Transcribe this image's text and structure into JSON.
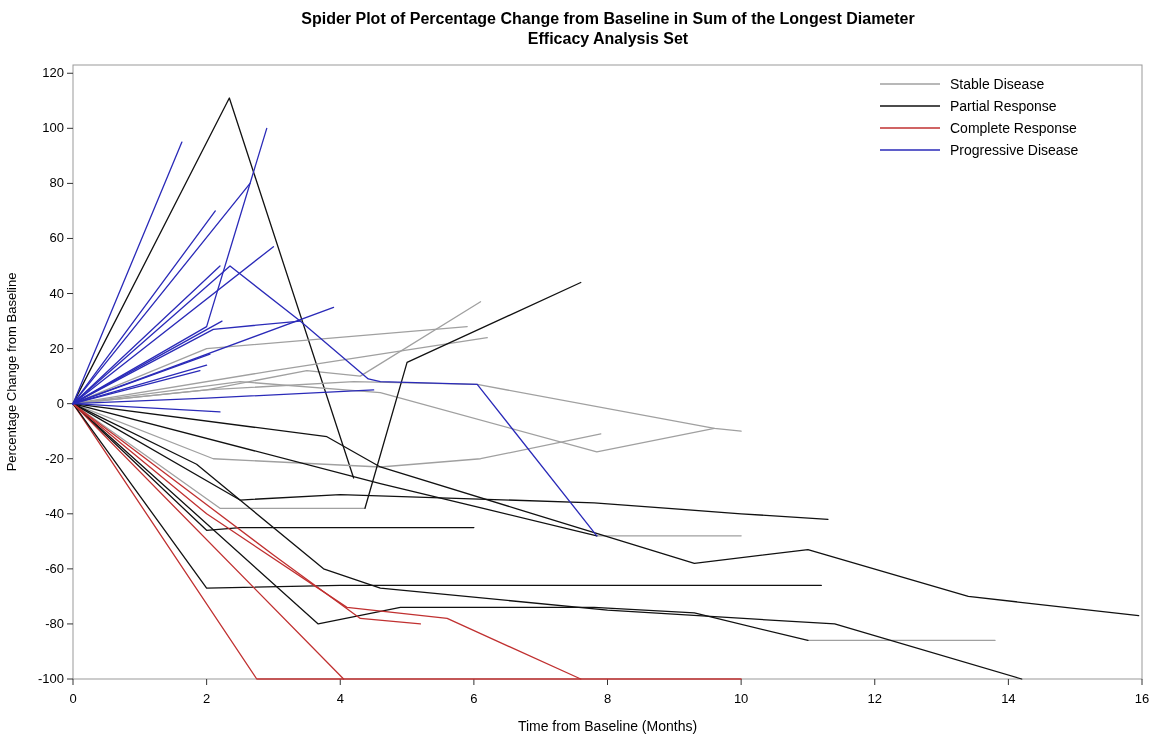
{
  "chart_data": {
    "type": "line",
    "title": "Spider Plot of Percentage Change from Baseline in Sum of the Longest Diameter",
    "subtitle": "Efficacy Analysis Set",
    "xlabel": "Time from Baseline (Months)",
    "ylabel": "Percentage Change from Baseline",
    "xlim": [
      0,
      16
    ],
    "ylim": [
      -100,
      123
    ],
    "xticks": [
      0,
      2,
      4,
      6,
      8,
      10,
      12,
      14,
      16
    ],
    "yticks": [
      -100,
      -80,
      -60,
      -40,
      -20,
      0,
      20,
      40,
      60,
      80,
      100,
      120
    ],
    "legend": "top right",
    "grid": false,
    "series": [
      {
        "name": "Stable Disease",
        "color": "#a0a0a0",
        "x": [
          0,
          2,
          3.5,
          4.3,
          6.1
        ],
        "values": [
          0,
          5,
          12,
          10,
          37
        ]
      },
      {
        "name": "Partial Response",
        "color": "#111111",
        "x": [
          0,
          2.34,
          4.2
        ],
        "values": [
          0,
          111,
          -27
        ]
      },
      {
        "name": "Complete Response",
        "color": "#c03030",
        "x": [
          0,
          2.75,
          10
        ],
        "values": [
          0,
          -100,
          -100
        ]
      },
      {
        "name": "Progressive Disease",
        "color": "#2a2ab8",
        "x": [
          0,
          1.63
        ],
        "values": [
          0,
          95
        ]
      },
      {
        "color": "#a0a0a0",
        "x": [
          0,
          2,
          5.9
        ],
        "values": [
          0,
          20,
          28
        ]
      },
      {
        "color": "#a0a0a0",
        "x": [
          0,
          3,
          6.2
        ],
        "values": [
          0,
          12,
          24
        ]
      },
      {
        "color": "#a0a0a0",
        "x": [
          0,
          2,
          4.2,
          6.05,
          9.6,
          10
        ],
        "values": [
          0,
          5,
          8,
          7,
          -9,
          -10
        ]
      },
      {
        "color": "#a0a0a0",
        "x": [
          0,
          2.5,
          4.6,
          7.84,
          9.6
        ],
        "values": [
          0,
          8,
          4,
          -17.5,
          -9
        ]
      },
      {
        "color": "#a0a0a0",
        "x": [
          0,
          2.1,
          4.6,
          6.1,
          7.9
        ],
        "values": [
          0,
          -20,
          -23,
          -20,
          -11
        ]
      },
      {
        "color": "#a0a0a0",
        "x": [
          0,
          2.2,
          4.37
        ],
        "values": [
          0,
          -38,
          -38
        ]
      },
      {
        "color": "#a0a0a0",
        "x": [
          11,
          13.8
        ],
        "values": [
          -86,
          -86
        ]
      },
      {
        "color": "#a0a0a0",
        "x": [
          7.84,
          10
        ],
        "values": [
          -48,
          -48
        ]
      },
      {
        "color": "#111111",
        "x": [
          4.37,
          5,
          7.6
        ],
        "values": [
          -38,
          15,
          44
        ]
      },
      {
        "color": "#111111",
        "x": [
          0,
          1.85,
          3.75,
          4.6,
          8,
          11.4,
          14.2
        ],
        "values": [
          0,
          -22,
          -60,
          -67,
          -75,
          -80,
          -100
        ]
      },
      {
        "color": "#111111",
        "x": [
          0,
          3.67,
          4.9,
          7.8,
          9.3,
          11
        ],
        "values": [
          0,
          -80,
          -74,
          -74,
          -76,
          -86
        ]
      },
      {
        "color": "#111111",
        "x": [
          0,
          2,
          4,
          11.2
        ],
        "values": [
          0,
          -67,
          -66,
          -66
        ]
      },
      {
        "color": "#111111",
        "x": [
          0,
          2,
          2.5,
          6
        ],
        "values": [
          0,
          -46,
          -45,
          -45
        ]
      },
      {
        "color": "#111111",
        "x": [
          0,
          2.5,
          4,
          7.8,
          10,
          11.3
        ],
        "values": [
          0,
          -35,
          -33,
          -36,
          -40,
          -42
        ]
      },
      {
        "color": "#111111",
        "x": [
          0,
          3.8,
          4.6,
          9.3,
          11,
          13.4,
          15.95
        ],
        "values": [
          0,
          -12,
          -23,
          -58,
          -53,
          -70,
          -77
        ]
      },
      {
        "color": "#111111",
        "x": [
          0,
          4.6,
          7.84
        ],
        "values": [
          0,
          -29,
          -48
        ]
      },
      {
        "color": "#c03030",
        "x": [
          0,
          4.05
        ],
        "values": [
          0,
          -100
        ]
      },
      {
        "color": "#c03030",
        "x": [
          0,
          2,
          4.1,
          5.6,
          7.6
        ],
        "values": [
          0,
          -40,
          -74,
          -78,
          -100
        ]
      },
      {
        "color": "#c03030",
        "x": [
          0,
          3,
          4.3,
          5.2
        ],
        "values": [
          0,
          -55,
          -78,
          -80
        ]
      },
      {
        "color": "#2a2ab8",
        "x": [
          0,
          2.13
        ],
        "values": [
          0,
          70
        ]
      },
      {
        "color": "#2a2ab8",
        "x": [
          0,
          2.65
        ],
        "values": [
          0,
          80
        ]
      },
      {
        "color": "#2a2ab8",
        "x": [
          0,
          2,
          2.9
        ],
        "values": [
          0,
          28,
          100
        ]
      },
      {
        "color": "#2a2ab8",
        "x": [
          0,
          3
        ],
        "values": [
          0,
          57
        ]
      },
      {
        "color": "#2a2ab8",
        "x": [
          0,
          2.2
        ],
        "values": [
          0,
          50
        ]
      },
      {
        "color": "#2a2ab8",
        "x": [
          0,
          2.35,
          3.4,
          4.42,
          4.6,
          6.05,
          7.84
        ],
        "values": [
          0,
          50,
          30,
          9,
          8,
          7,
          -48
        ]
      },
      {
        "color": "#2a2ab8",
        "x": [
          0,
          3.9
        ],
        "values": [
          0,
          35
        ]
      },
      {
        "color": "#2a2ab8",
        "x": [
          0,
          2.1,
          3.4
        ],
        "values": [
          0,
          27,
          30
        ]
      },
      {
        "color": "#2a2ab8",
        "x": [
          0,
          2.23
        ],
        "values": [
          0,
          30
        ]
      },
      {
        "color": "#2a2ab8",
        "x": [
          0,
          2.05
        ],
        "values": [
          0,
          18
        ]
      },
      {
        "color": "#2a2ab8",
        "x": [
          0,
          2
        ],
        "values": [
          0,
          14
        ]
      },
      {
        "color": "#2a2ab8",
        "x": [
          0,
          1.9
        ],
        "values": [
          0,
          12
        ]
      },
      {
        "color": "#2a2ab8",
        "x": [
          0,
          2.2
        ],
        "values": [
          0,
          -3
        ]
      },
      {
        "color": "#2a2ab8",
        "x": [
          0,
          2,
          4.5
        ],
        "values": [
          0,
          2,
          5
        ]
      }
    ]
  }
}
